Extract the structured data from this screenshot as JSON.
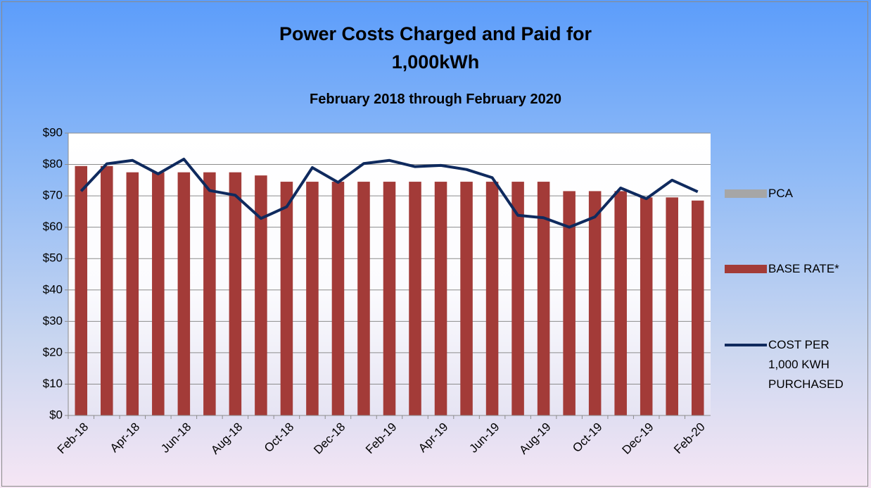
{
  "chart_data": {
    "type": "bar",
    "title": "Power Costs Charged and Paid for 1,000kWh",
    "subtitle": "February 2018 through February 2020",
    "categories": [
      "Feb-18",
      null,
      "Apr-18",
      null,
      "Jun-18",
      null,
      "Aug-18",
      null,
      "Oct-18",
      null,
      "Dec-18",
      null,
      "Feb-19",
      null,
      "Apr-19",
      null,
      "Jun-19",
      null,
      "Aug-19",
      null,
      "Oct-19",
      null,
      "Dec-19",
      null,
      "Feb-20"
    ],
    "series": [
      {
        "name": "PCA",
        "color": "#a6a6a6",
        "values": [
          0,
          0,
          0,
          0,
          0,
          0,
          0,
          0,
          0,
          0,
          0,
          0,
          0,
          0,
          0,
          0,
          0,
          0,
          0,
          0,
          0,
          0,
          0,
          0,
          0
        ]
      },
      {
        "name": "BASE RATE*",
        "color": "#a33b38",
        "values": [
          79.5,
          79.5,
          77.5,
          77.5,
          77.5,
          77.5,
          77.5,
          76.5,
          74.5,
          74.5,
          74.5,
          74.5,
          74.5,
          74.5,
          74.5,
          74.5,
          74.5,
          74.5,
          74.5,
          71.5,
          71.5,
          71.5,
          69.5,
          69.5,
          68.5
        ]
      },
      {
        "name": "COST PER 1,000 KWH PURCHASED",
        "type": "line",
        "color": "#0f2a5e",
        "values": [
          71.5,
          80.2,
          81.3,
          77,
          81.7,
          71.7,
          70.2,
          62.8,
          66.5,
          79,
          74.3,
          80.3,
          81.3,
          79.3,
          79.7,
          78.4,
          75.8,
          63.8,
          63,
          60,
          63.3,
          72.5,
          69.1,
          75,
          71.3
        ]
      }
    ],
    "stacked": true,
    "ylim": [
      0,
      90
    ],
    "yticks": [
      {
        "value": 0,
        "label": "$0"
      },
      {
        "value": 10,
        "label": "$10"
      },
      {
        "value": 20,
        "label": "$20"
      },
      {
        "value": 30,
        "label": "$30"
      },
      {
        "value": 40,
        "label": "$40"
      },
      {
        "value": 50,
        "label": "$50"
      },
      {
        "value": 60,
        "label": "$60"
      },
      {
        "value": 70,
        "label": "$70"
      },
      {
        "value": 80,
        "label": "$80"
      },
      {
        "value": 90,
        "label": "$90"
      }
    ],
    "grid": true,
    "legend": "right"
  }
}
